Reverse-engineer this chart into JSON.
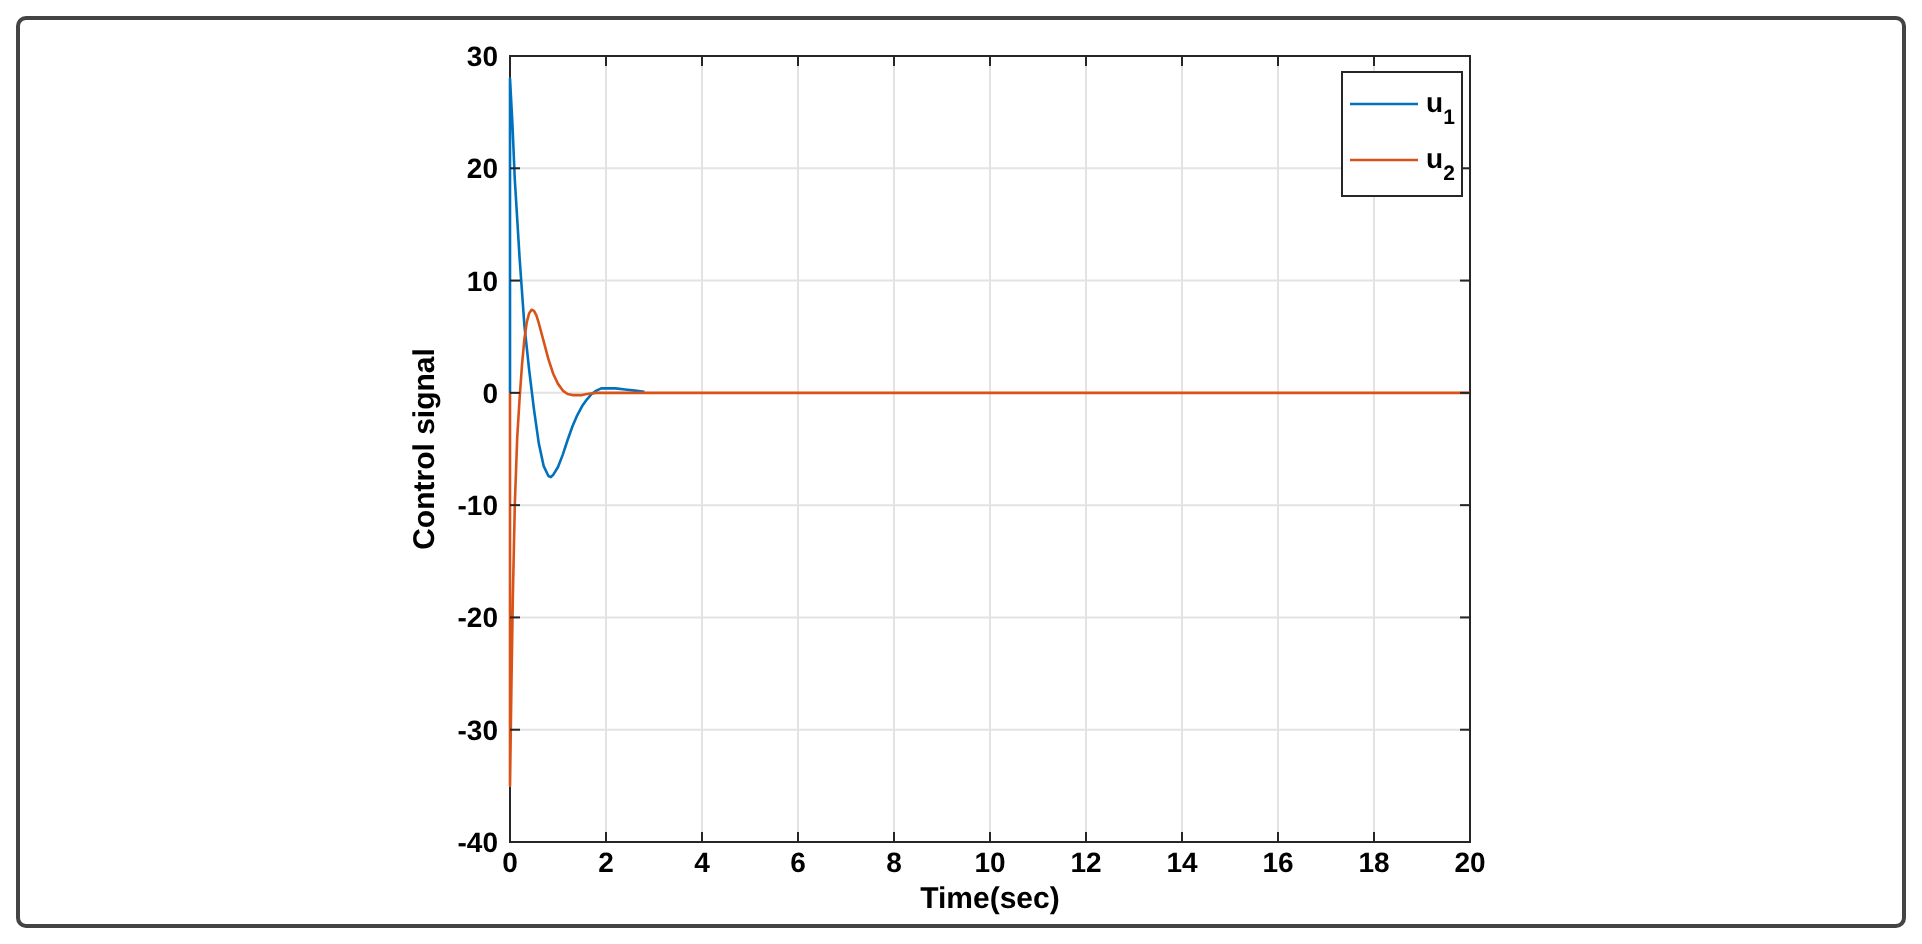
{
  "chart_data": {
    "type": "line",
    "xlabel": "Time(sec)",
    "ylabel": "Control signal",
    "xlim": [
      0,
      20
    ],
    "ylim": [
      -40,
      30
    ],
    "xticks": [
      0,
      2,
      4,
      6,
      8,
      10,
      12,
      14,
      16,
      18,
      20
    ],
    "yticks": [
      -40,
      -30,
      -20,
      -10,
      0,
      10,
      20,
      30
    ],
    "grid": true,
    "legend": "top right",
    "series": [
      {
        "name": "u$_{1}$",
        "color": "#0072bd",
        "x": [
          0,
          0,
          0.05,
          0.1,
          0.2,
          0.3,
          0.4,
          0.5,
          0.6,
          0.7,
          0.8,
          0.85,
          0.9,
          1.0,
          1.1,
          1.2,
          1.3,
          1.4,
          1.5,
          1.6,
          1.7,
          1.8,
          1.9,
          2.0,
          2.1,
          2.2,
          2.4,
          2.6,
          2.8
        ],
        "values": [
          0,
          28,
          24,
          19,
          12,
          6,
          2,
          -1.5,
          -4.5,
          -6.5,
          -7.4,
          -7.5,
          -7.3,
          -6.6,
          -5.5,
          -4.2,
          -3,
          -2,
          -1.2,
          -0.6,
          -0.1,
          0.2,
          0.4,
          0.4,
          0.4,
          0.4,
          0.3,
          0.2,
          0.1
        ]
      },
      {
        "name": "u$_{2}$",
        "color": "#d95319",
        "x": [
          0,
          0,
          0.03,
          0.06,
          0.1,
          0.15,
          0.2,
          0.25,
          0.3,
          0.35,
          0.4,
          0.45,
          0.5,
          0.55,
          0.6,
          0.7,
          0.8,
          0.9,
          1.0,
          1.1,
          1.2,
          1.3,
          1.4,
          1.5,
          1.6,
          1.8,
          2.0,
          2.5,
          3,
          20
        ],
        "values": [
          0,
          -35,
          -26,
          -18,
          -10,
          -4,
          -0.5,
          2.5,
          4.8,
          6.3,
          7.1,
          7.4,
          7.3,
          6.9,
          6.2,
          4.6,
          3.0,
          1.7,
          0.8,
          0.2,
          -0.1,
          -0.2,
          -0.2,
          -0.2,
          -0.1,
          0,
          0,
          0,
          0,
          0
        ]
      }
    ]
  }
}
